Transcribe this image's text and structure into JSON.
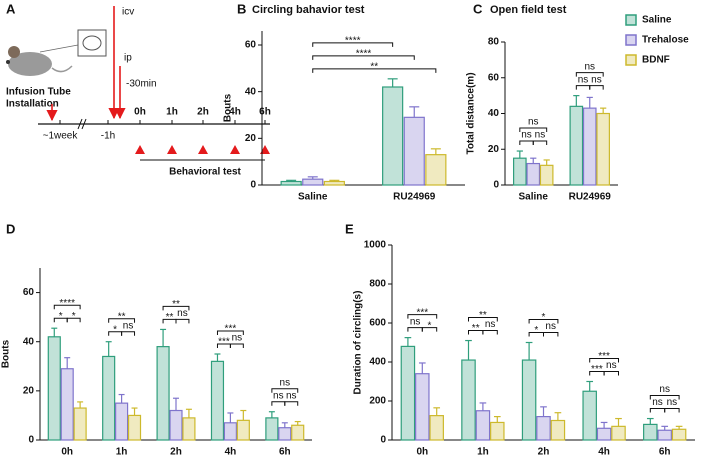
{
  "panel_a": {
    "letter": "A",
    "icv": "icv",
    "ip": "ip",
    "installation": [
      "Infusion Tube",
      "Installation"
    ],
    "minus30": "-30min",
    "timeline_labels": [
      "~1week",
      "-1h",
      "0h",
      "1h",
      "2h",
      "4h",
      "6h"
    ],
    "behavioral": "Behavioral test"
  },
  "chart_data": [
    {
      "type": "bar",
      "panel": "B",
      "title": "Circling bahavior test",
      "ylabel": "Bouts",
      "categories": [
        "Saline",
        "RU24969"
      ],
      "series": [
        {
          "color": "#2f9e7c",
          "values": [
            1.5,
            42
          ],
          "errors": [
            0.5,
            3.5
          ]
        },
        {
          "color": "#7f74cc",
          "values": [
            2.5,
            29
          ],
          "errors": [
            1,
            4.5
          ]
        },
        {
          "color": "#cdb92c",
          "values": [
            1.5,
            13
          ],
          "errors": [
            0.5,
            2.5
          ]
        }
      ],
      "ylim": [
        0,
        66
      ],
      "yticks": [
        0,
        20,
        40,
        60
      ],
      "annotations": [
        {
          "label": "**",
          "from": [
            0,
            1
          ],
          "to": [
            1,
            2
          ]
        },
        {
          "label": "****",
          "from": [
            0,
            1
          ],
          "to": [
            1,
            1
          ]
        },
        {
          "label": "****",
          "from": [
            0,
            1
          ],
          "to": [
            1,
            0
          ]
        }
      ]
    },
    {
      "type": "bar",
      "panel": "C",
      "title": "Open field test",
      "ylabel": "Total distance(m)",
      "categories": [
        "Saline",
        "RU24969"
      ],
      "series": [
        {
          "name": "Saline",
          "color": "#2f9e7c",
          "values": [
            15,
            44
          ],
          "errors": [
            4,
            6
          ]
        },
        {
          "name": "Trehalose",
          "color": "#7f74cc",
          "values": [
            12,
            43
          ],
          "errors": [
            3,
            6
          ]
        },
        {
          "name": "BDNF",
          "color": "#cdb92c",
          "values": [
            11,
            40
          ],
          "errors": [
            3,
            3
          ]
        }
      ],
      "ylim": [
        0,
        80
      ],
      "yticks": [
        0,
        20,
        40,
        60,
        80
      ],
      "annotations": [
        {
          "label": "ns",
          "from": [
            0,
            0
          ],
          "to": [
            0,
            1
          ]
        },
        {
          "label": "ns",
          "from": [
            0,
            1
          ],
          "to": [
            0,
            2
          ]
        },
        {
          "label": "ns",
          "from": [
            0,
            0
          ],
          "to": [
            0,
            2
          ]
        },
        {
          "label": "ns",
          "from": [
            1,
            0
          ],
          "to": [
            1,
            1
          ]
        },
        {
          "label": "ns",
          "from": [
            1,
            1
          ],
          "to": [
            1,
            2
          ]
        },
        {
          "label": "ns",
          "from": [
            1,
            0
          ],
          "to": [
            1,
            2
          ]
        }
      ]
    },
    {
      "type": "bar",
      "panel": "D",
      "ylabel": "Bouts",
      "categories": [
        "0h",
        "1h",
        "2h",
        "4h",
        "6h"
      ],
      "series": [
        {
          "color": "#2f9e7c",
          "values": [
            42,
            34,
            38,
            32,
            9
          ],
          "errors": [
            3.5,
            6,
            7,
            3,
            2.5
          ]
        },
        {
          "color": "#7f74cc",
          "values": [
            29,
            15,
            12,
            7,
            5
          ],
          "errors": [
            4.5,
            3.5,
            5,
            4,
            2
          ]
        },
        {
          "color": "#cdb92c",
          "values": [
            13,
            10,
            9,
            8,
            6
          ],
          "errors": [
            2.5,
            3,
            3.5,
            4,
            1.5
          ]
        }
      ],
      "ylim": [
        0,
        70
      ],
      "yticks": [
        0,
        20,
        40,
        60
      ],
      "annotations": [
        {
          "label": "*",
          "from": [
            0,
            0
          ],
          "to": [
            0,
            1
          ]
        },
        {
          "label": "*",
          "from": [
            0,
            1
          ],
          "to": [
            0,
            2
          ]
        },
        {
          "label": "****",
          "from": [
            0,
            0
          ],
          "to": [
            0,
            2
          ]
        },
        {
          "label": "*",
          "from": [
            1,
            0
          ],
          "to": [
            1,
            1
          ]
        },
        {
          "label": "ns",
          "from": [
            1,
            1
          ],
          "to": [
            1,
            2
          ]
        },
        {
          "label": "**",
          "from": [
            1,
            0
          ],
          "to": [
            1,
            2
          ]
        },
        {
          "label": "**",
          "from": [
            2,
            0
          ],
          "to": [
            2,
            1
          ]
        },
        {
          "label": "ns",
          "from": [
            2,
            1
          ],
          "to": [
            2,
            2
          ]
        },
        {
          "label": "**",
          "from": [
            2,
            0
          ],
          "to": [
            2,
            2
          ]
        },
        {
          "label": "***",
          "from": [
            3,
            0
          ],
          "to": [
            3,
            1
          ]
        },
        {
          "label": "ns",
          "from": [
            3,
            1
          ],
          "to": [
            3,
            2
          ]
        },
        {
          "label": "***",
          "from": [
            3,
            0
          ],
          "to": [
            3,
            2
          ]
        },
        {
          "label": "ns",
          "from": [
            4,
            0
          ],
          "to": [
            4,
            1
          ]
        },
        {
          "label": "ns",
          "from": [
            4,
            1
          ],
          "to": [
            4,
            2
          ]
        },
        {
          "label": "ns",
          "from": [
            4,
            0
          ],
          "to": [
            4,
            2
          ]
        }
      ]
    },
    {
      "type": "bar",
      "panel": "E",
      "ylabel": "Duration of circling(s)",
      "categories": [
        "0h",
        "1h",
        "2h",
        "4h",
        "6h"
      ],
      "series": [
        {
          "color": "#2f9e7c",
          "values": [
            480,
            410,
            410,
            250,
            80
          ],
          "errors": [
            45,
            100,
            90,
            50,
            30
          ]
        },
        {
          "color": "#7f74cc",
          "values": [
            340,
            150,
            120,
            60,
            50
          ],
          "errors": [
            55,
            40,
            50,
            30,
            20
          ]
        },
        {
          "color": "#cdb92c",
          "values": [
            125,
            90,
            100,
            70,
            55
          ],
          "errors": [
            40,
            30,
            40,
            40,
            15
          ]
        }
      ],
      "ylim": [
        0,
        1000
      ],
      "yticks": [
        0,
        200,
        400,
        600,
        800,
        1000
      ],
      "annotations": [
        {
          "label": "ns",
          "from": [
            0,
            0
          ],
          "to": [
            0,
            1
          ]
        },
        {
          "label": "*",
          "from": [
            0,
            1
          ],
          "to": [
            0,
            2
          ]
        },
        {
          "label": "***",
          "from": [
            0,
            0
          ],
          "to": [
            0,
            2
          ]
        },
        {
          "label": "**",
          "from": [
            1,
            0
          ],
          "to": [
            1,
            1
          ]
        },
        {
          "label": "ns",
          "from": [
            1,
            1
          ],
          "to": [
            1,
            2
          ]
        },
        {
          "label": "**",
          "from": [
            1,
            0
          ],
          "to": [
            1,
            2
          ]
        },
        {
          "label": "*",
          "from": [
            2,
            0
          ],
          "to": [
            2,
            1
          ]
        },
        {
          "label": "ns",
          "from": [
            2,
            1
          ],
          "to": [
            2,
            2
          ]
        },
        {
          "label": "*",
          "from": [
            2,
            0
          ],
          "to": [
            2,
            2
          ]
        },
        {
          "label": "***",
          "from": [
            3,
            0
          ],
          "to": [
            3,
            1
          ]
        },
        {
          "label": "ns",
          "from": [
            3,
            1
          ],
          "to": [
            3,
            2
          ]
        },
        {
          "label": "***",
          "from": [
            3,
            0
          ],
          "to": [
            3,
            2
          ]
        },
        {
          "label": "ns",
          "from": [
            4,
            0
          ],
          "to": [
            4,
            1
          ]
        },
        {
          "label": "ns",
          "from": [
            4,
            1
          ],
          "to": [
            4,
            2
          ]
        },
        {
          "label": "ns",
          "from": [
            4,
            0
          ],
          "to": [
            4,
            2
          ]
        }
      ]
    }
  ]
}
